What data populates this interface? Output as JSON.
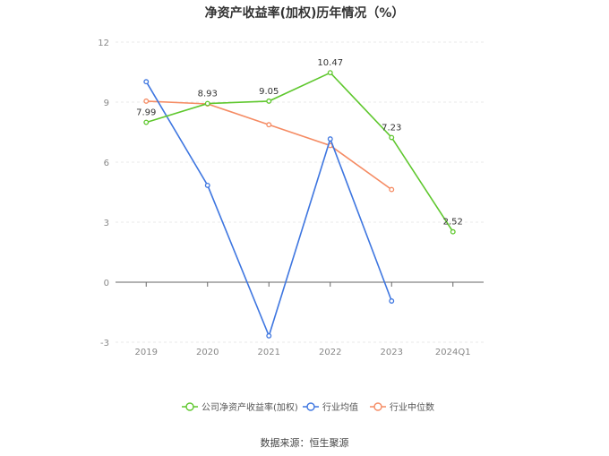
{
  "chart_data": {
    "type": "line",
    "title": "净资产收益率(加权)历年情况（%）",
    "categories": [
      "2019",
      "2020",
      "2021",
      "2022",
      "2023",
      "2024Q1"
    ],
    "ylim": [
      -3,
      12
    ],
    "yticks": [
      -3,
      0,
      3,
      6,
      9,
      12
    ],
    "grid": true,
    "legend_position": "bottom",
    "series": [
      {
        "name": "公司净资产收益率(加权)",
        "color": "#5ec72d",
        "values": [
          7.99,
          8.93,
          9.05,
          10.47,
          7.23,
          2.52
        ],
        "labels": [
          "7.99",
          "8.93",
          "9.05",
          "10.47",
          "7.23",
          "2.52"
        ],
        "show_labels": true
      },
      {
        "name": "行业均值",
        "color": "#3e76e0",
        "values": [
          10.02,
          4.84,
          -2.68,
          7.16,
          -0.94,
          null
        ],
        "show_labels": false
      },
      {
        "name": "行业中位数",
        "color": "#f58b63",
        "values": [
          9.05,
          8.91,
          7.87,
          6.83,
          4.63,
          null
        ],
        "show_labels": false
      }
    ]
  },
  "source": "数据来源：恒生聚源"
}
